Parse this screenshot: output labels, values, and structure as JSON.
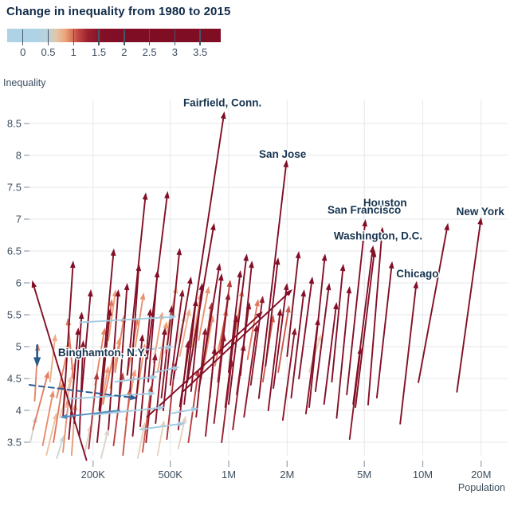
{
  "header": {
    "title": "Change in inequality from 1980 to 2015"
  },
  "legend": {
    "ticks": [
      {
        "label": "0",
        "value": 0
      },
      {
        "label": "0.5",
        "value": 0.5
      },
      {
        "label": "1",
        "value": 1
      },
      {
        "label": "1.5",
        "value": 1.5
      },
      {
        "label": "2",
        "value": 2
      },
      {
        "label": "2.5",
        "value": 2.5
      },
      {
        "label": "3",
        "value": 3
      },
      {
        "label": "3.5",
        "value": 3.5
      }
    ],
    "colors": {
      "low_blue": "#aed2e6",
      "mid_salmon": "#eca57c",
      "high_dark_red": "#7f0e25",
      "negative_navy": "#143f68"
    }
  },
  "axes": {
    "y_title": "Inequality",
    "x_title": "Population",
    "y_ticks": [
      {
        "label": "8.5",
        "value": 8.5
      },
      {
        "label": "8",
        "value": 8
      },
      {
        "label": "7.5",
        "value": 7.5
      },
      {
        "label": "7",
        "value": 7
      },
      {
        "label": "6.5",
        "value": 6.5
      },
      {
        "label": "6",
        "value": 6
      },
      {
        "label": "5.5",
        "value": 5.5
      },
      {
        "label": "5",
        "value": 5
      },
      {
        "label": "4.5",
        "value": 4.5
      },
      {
        "label": "4",
        "value": 4
      },
      {
        "label": "3.5",
        "value": 3.5
      }
    ],
    "x_ticks": [
      {
        "label": "200K",
        "pop_k": 200
      },
      {
        "label": "500K",
        "pop_k": 500
      },
      {
        "label": "1M",
        "pop_k": 1000
      },
      {
        "label": "2M",
        "pop_k": 2000
      },
      {
        "label": "5M",
        "pop_k": 5000
      },
      {
        "label": "10M",
        "pop_k": 10000
      },
      {
        "label": "20M",
        "pop_k": 20000
      }
    ]
  },
  "chart_data": {
    "type": "scatter",
    "subtype": "arrow-change-plot",
    "title": "Change in inequality from 1980 to 2015",
    "xlabel": "Population",
    "ylabel": "Inequality",
    "x_scale": "log",
    "xlim_pop": [
      90000,
      27000000
    ],
    "ylim": [
      3.2,
      8.85
    ],
    "grid": true,
    "legend_position": "top-left",
    "color_encoding": "delta = inequality_2015 - inequality_1980; blue near 0/negative, salmon ~0.8, dark red >= 1.5",
    "arrow_format": [
      "pop_1980_thousands",
      "inequality_1980",
      "pop_2015_thousands",
      "inequality_2015"
    ],
    "arrows": [
      [
        185,
        3.22,
        97,
        6.04
      ],
      [
        100,
        4.15,
        104,
        5.05
      ],
      [
        110,
        3.45,
        125,
        4.32
      ],
      [
        98,
        3.7,
        118,
        4.62
      ],
      [
        125,
        3.5,
        140,
        4.45
      ],
      [
        130,
        4.2,
        152,
        5.1
      ],
      [
        140,
        3.35,
        150,
        4.2
      ],
      [
        150,
        3.55,
        168,
        5.3
      ],
      [
        115,
        3.3,
        130,
        3.97
      ],
      [
        160,
        3.8,
        175,
        5.55
      ],
      [
        120,
        4.45,
        128,
        5.2
      ],
      [
        145,
        4.05,
        160,
        4.75
      ],
      [
        155,
        3.3,
        162,
        4.12
      ],
      [
        170,
        3.6,
        178,
        5.1
      ],
      [
        135,
        3.9,
        155,
        4.55
      ],
      [
        175,
        4.3,
        195,
        5.9
      ],
      [
        158,
        4.5,
        148,
        5.45
      ],
      [
        190,
        3.4,
        210,
        4.6
      ],
      [
        140,
        3.9,
        158,
        6.35
      ],
      [
        95,
        3.5,
        102,
        3.92
      ],
      [
        130,
        3.25,
        142,
        3.62
      ],
      [
        215,
        4.0,
        256,
        6.54
      ],
      [
        210,
        3.5,
        245,
        5.6
      ],
      [
        225,
        4.1,
        260,
        5.0
      ],
      [
        240,
        3.7,
        270,
        5.9
      ],
      [
        205,
        4.4,
        230,
        5.3
      ],
      [
        255,
        3.45,
        285,
        4.6
      ],
      [
        270,
        4.0,
        300,
        6.0
      ],
      [
        300,
        4.55,
        340,
        5.45
      ],
      [
        320,
        3.6,
        360,
        5.2
      ],
      [
        285,
        3.3,
        310,
        4.35
      ],
      [
        350,
        3.75,
        395,
        5.6
      ],
      [
        230,
        4.8,
        250,
        5.75
      ],
      [
        310,
        4.3,
        345,
        6.3
      ],
      [
        260,
        4.6,
        290,
        5.5
      ],
      [
        215,
        3.9,
        240,
        4.7
      ],
      [
        335,
        4.2,
        370,
        5.05
      ],
      [
        245,
        4.35,
        275,
        5.15
      ],
      [
        375,
        3.5,
        420,
        4.9
      ],
      [
        295,
        3.85,
        330,
        4.65
      ],
      [
        385,
        4.45,
        430,
        6.2
      ],
      [
        360,
        3.35,
        400,
        4.4
      ],
      [
        240,
        5.1,
        262,
        5.9
      ],
      [
        180,
        3.3,
        195,
        3.78
      ],
      [
        220,
        3.25,
        240,
        3.72
      ],
      [
        340,
        3.25,
        370,
        3.82
      ],
      [
        300,
        4.56,
        374,
        7.42
      ],
      [
        380,
        4.81,
        485,
        7.44
      ],
      [
        612,
        4.44,
        842,
        6.94
      ],
      {
        "v": [
          560,
          4.06,
          950,
          8.69
        ],
        "city": "Fairfield, Conn."
      },
      {
        "v": [
          1430,
          4.19,
          1990,
          7.93
        ],
        "city": "San Jose"
      },
      [
        700,
        4.3,
        900,
        6.31
      ],
      [
        460,
        4.0,
        560,
        6.55
      ],
      [
        520,
        4.5,
        640,
        6.1
      ],
      [
        1000,
        4.1,
        1240,
        6.46
      ],
      [
        2600,
        4.05,
        3140,
        6.46
      ],
      [
        420,
        3.8,
        470,
        5.3
      ],
      [
        450,
        4.2,
        510,
        5.65
      ],
      [
        480,
        3.55,
        530,
        4.75
      ],
      [
        500,
        4.4,
        580,
        5.9
      ],
      [
        430,
        4.6,
        480,
        5.4
      ],
      [
        550,
        3.7,
        620,
        5.1
      ],
      [
        590,
        4.1,
        680,
        5.75
      ],
      [
        620,
        3.5,
        700,
        4.65
      ],
      [
        640,
        4.3,
        730,
        6.0
      ],
      [
        680,
        3.9,
        760,
        5.3
      ],
      [
        720,
        4.5,
        820,
        5.7
      ],
      [
        760,
        3.6,
        850,
        5.0
      ],
      [
        800,
        4.2,
        920,
        6.15
      ],
      [
        840,
        3.8,
        950,
        5.2
      ],
      [
        880,
        4.45,
        1000,
        5.85
      ],
      [
        920,
        3.5,
        1040,
        4.8
      ],
      [
        960,
        4.05,
        1100,
        5.5
      ],
      [
        1000,
        4.6,
        1150,
        6.2
      ],
      [
        1050,
        3.7,
        1200,
        5.05
      ],
      [
        1100,
        4.25,
        1280,
        5.7
      ],
      [
        1200,
        3.9,
        1400,
        5.35
      ],
      [
        1300,
        4.4,
        1500,
        5.8
      ],
      [
        470,
        4.9,
        520,
        5.6
      ],
      [
        530,
        5.0,
        600,
        5.5
      ],
      [
        610,
        4.75,
        690,
        5.35
      ],
      [
        700,
        5.1,
        790,
        5.95
      ],
      [
        900,
        4.9,
        1020,
        6.05
      ],
      [
        1150,
        4.55,
        1320,
        6.35
      ],
      [
        410,
        4.75,
        455,
        5.55
      ],
      [
        330,
        5.0,
        365,
        5.85
      ],
      [
        560,
        4.85,
        630,
        5.6
      ],
      [
        740,
        4.65,
        830,
        5.5
      ],
      [
        650,
        5.0,
        720,
        5.85
      ],
      [
        480,
        5.2,
        540,
        5.95
      ],
      [
        850,
        4.7,
        980,
        5.6
      ],
      [
        1250,
        4.8,
        1420,
        5.75
      ],
      [
        430,
        3.3,
        465,
        3.85
      ],
      [
        550,
        3.4,
        600,
        3.92
      ],
      [
        583,
        4.3,
        2130,
        5.9
      ],
      [
        380,
        3.9,
        1500,
        5.55
      ],
      [
        1600,
        4.0,
        1850,
        5.6
      ],
      [
        1700,
        4.35,
        2000,
        6.0
      ],
      [
        1900,
        3.85,
        2200,
        5.3
      ],
      [
        2100,
        4.2,
        2450,
        5.9
      ],
      [
        2300,
        4.5,
        2700,
        6.1
      ],
      [
        2500,
        3.95,
        2900,
        5.45
      ],
      [
        2800,
        4.3,
        3300,
        6.0
      ],
      [
        3100,
        4.1,
        3600,
        5.7
      ],
      [
        1550,
        4.7,
        1800,
        6.4
      ],
      [
        2000,
        4.85,
        2300,
        6.5
      ],
      [
        3400,
        4.45,
        3900,
        6.3
      ],
      [
        2600,
        4.6,
        3000,
        5.2
      ],
      [
        1500,
        4.45,
        1700,
        5.5
      ],
      [
        1800,
        4.6,
        2050,
        5.65
      ],
      [
        1050,
        5.0,
        1180,
        5.9
      ],
      {
        "v": [
          4380,
          4.1,
          5550,
          6.59
        ],
        "city": "Washington, D.C."
      },
      [
        4500,
        4.05,
        5650,
        6.52
      ],
      {
        "v": [
          4060,
          4.25,
          5070,
          7.0
        ],
        "city": "San Francisco"
      },
      {
        "v": [
          5230,
          4.09,
          6200,
          6.88
        ],
        "city": "Houston"
      },
      {
        "v": [
          7650,
          3.79,
          9300,
          6.03
        ],
        "city": "Chicago"
      },
      [
        9500,
        4.44,
        13500,
        6.94
      ],
      {
        "v": [
          15000,
          4.29,
          20000,
          7.03
        ],
        "city": "New York"
      },
      [
        3600,
        3.88,
        4200,
        5.95
      ],
      [
        5800,
        4.2,
        6960,
        6.34
      ],
      [
        4200,
        3.55,
        4800,
        5.0
      ],
      [
        171,
        5.38,
        540,
        5.47
      ],
      {
        "v": [
          300,
          4.92,
          520,
          5.0
        ],
        "dash": "4 4"
      },
      [
        150,
        4.18,
        420,
        4.27
      ],
      [
        200,
        3.93,
        470,
        4.05
      ],
      [
        260,
        4.45,
        430,
        4.53
      ],
      [
        350,
        3.7,
        600,
        3.8
      ],
      [
        420,
        4.6,
        560,
        4.68
      ],
      [
        500,
        3.95,
        700,
        4.03
      ],
      [
        274,
        4.0,
        135,
        3.89
      ],
      {
        "v": [
          103,
          5.02,
          103,
          4.68
        ],
        "city": "Binghamton, N.Y.",
        "w": 2.6
      },
      {
        "v": [
          94,
          4.4,
          340,
          4.19
        ],
        "color": "#2e5f95",
        "dash": "7 5",
        "w": 2
      }
    ],
    "city_labels": [
      {
        "text": "Fairfield, Conn.",
        "pop_k": 583,
        "inequality": 8.77
      },
      {
        "text": "San Jose",
        "pop_k": 1433,
        "inequality": 7.96
      },
      {
        "text": "Houston",
        "pop_k": 4940,
        "inequality": 7.2
      },
      {
        "text": "San Francisco",
        "pop_k": 3230,
        "inequality": 7.09
      },
      {
        "text": "Washington, D.C.",
        "pop_k": 3480,
        "inequality": 6.68
      },
      {
        "text": "New York",
        "pop_k": 14900,
        "inequality": 7.06
      },
      {
        "text": "Chicago",
        "pop_k": 7300,
        "inequality": 6.09
      },
      {
        "text": "Binghamton, N.Y.",
        "pop_k": 132,
        "inequality": 4.85
      }
    ]
  }
}
